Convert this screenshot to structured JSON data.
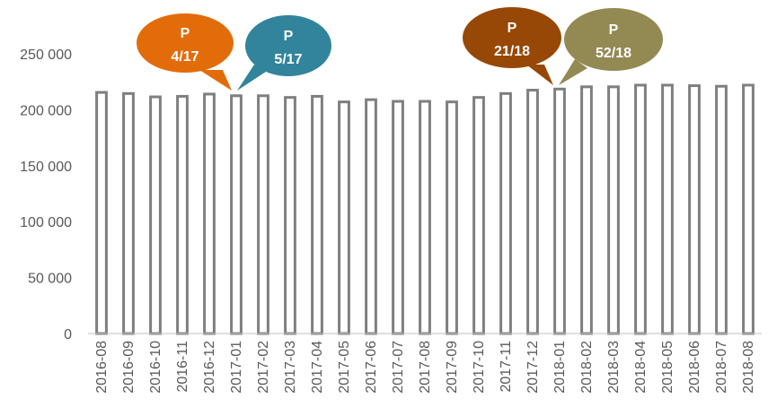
{
  "chart_data": {
    "type": "bar",
    "categories": [
      "2016-08",
      "2016-09",
      "2016-10",
      "2016-11",
      "2016-12",
      "2017-01",
      "2017-02",
      "2017-03",
      "2017-04",
      "2017-05",
      "2017-06",
      "2017-07",
      "2017-08",
      "2017-09",
      "2017-10",
      "2017-11",
      "2017-12",
      "2018-01",
      "2018-02",
      "2018-03",
      "2018-04",
      "2018-05",
      "2018-06",
      "2018-07",
      "2018-08"
    ],
    "values": [
      215500,
      214500,
      211500,
      212000,
      214000,
      212500,
      212500,
      211000,
      212000,
      207000,
      209000,
      207500,
      207500,
      207000,
      211000,
      214500,
      217500,
      218500,
      220500,
      220500,
      222000,
      222000,
      221500,
      221000,
      222000
    ],
    "title": "",
    "xlabel": "",
    "ylabel": "",
    "ylim": [
      0,
      250000
    ],
    "yticks": [
      0,
      50000,
      100000,
      150000,
      200000,
      250000
    ],
    "ytick_labels": [
      "0",
      "50 000",
      "100 000",
      "150 000",
      "200 000",
      "250 000"
    ],
    "grid": false,
    "bar_style": {
      "fill": "#ffffff",
      "stroke": "#7f7f7f"
    },
    "annotations": [
      {
        "line1": "P",
        "line2": "4/17",
        "color": "#e36c0a",
        "points_to": "2017-01"
      },
      {
        "line1": "P",
        "line2": "5/17",
        "color": "#31849b",
        "points_to": "2017-01"
      },
      {
        "line1": "P",
        "line2": "21/18",
        "color": "#974806",
        "points_to": "2018-01"
      },
      {
        "line1": "P",
        "line2": "52/18",
        "color": "#938953",
        "points_to": "2018-01"
      }
    ]
  }
}
